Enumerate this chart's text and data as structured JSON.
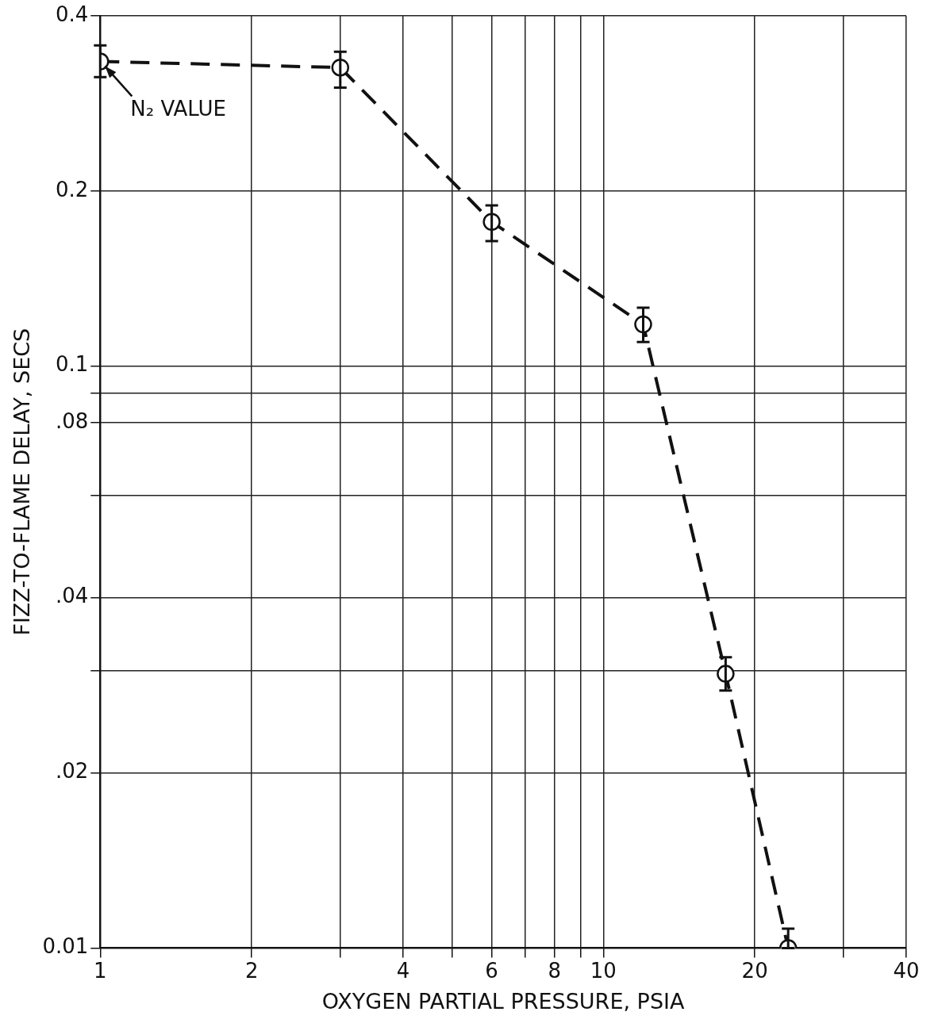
{
  "chart_data": {
    "type": "line",
    "xlabel": "OXYGEN PARTIAL PRESSURE, PSIA",
    "ylabel": "FIZZ-TO-FLAME DELAY, SECS",
    "x": [
      1,
      3,
      6,
      12,
      17.5,
      23.3
    ],
    "values": [
      0.334,
      0.326,
      0.177,
      0.118,
      0.0296,
      0.01
    ],
    "errors": [
      [
        0.314,
        0.356
      ],
      [
        0.301,
        0.347
      ],
      [
        0.164,
        0.189
      ],
      [
        0.11,
        0.126
      ],
      [
        0.0277,
        0.0316
      ],
      [
        0.01,
        0.0108
      ]
    ],
    "color": "#111111",
    "marker": "circle",
    "line_style": "dashed",
    "log": "xy",
    "grid": true,
    "xlim": [
      1,
      40
    ],
    "ylim": [
      0.01,
      0.4
    ],
    "xticks": [
      1,
      2,
      {
        "value": 3,
        "label": null
      },
      4,
      {
        "value": 5,
        "label": null
      },
      6,
      {
        "value": 7,
        "label": null
      },
      8,
      {
        "value": 9,
        "label": null
      },
      10,
      20,
      {
        "value": 30,
        "label": null
      },
      40
    ],
    "yticks": [
      {
        "value": 0.01,
        "label": "0.01"
      },
      {
        "value": 0.02,
        "label": ".02"
      },
      {
        "value": 0.03,
        "label": null
      },
      {
        "value": 0.04,
        "label": ".04"
      },
      {
        "value": 0.06,
        "label": null
      },
      {
        "value": 0.08,
        "label": ".08"
      },
      {
        "value": 0.09,
        "label": null
      },
      {
        "value": 0.1,
        "label": "0.1"
      },
      {
        "value": 0.2,
        "label": "0.2"
      },
      {
        "value": 0.4,
        "label": "0.4"
      }
    ],
    "annotations": [
      {
        "text": "N₂ VALUE",
        "x": 1,
        "y": 0.334
      }
    ]
  }
}
